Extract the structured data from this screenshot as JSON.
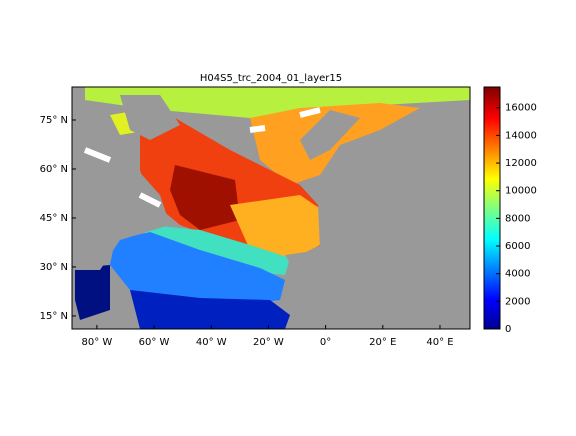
{
  "title": "H04S5_trc_2004_01_layer15",
  "map": {
    "xlim": [
      -88.7,
      50.5
    ],
    "ylim": [
      11,
      85.1
    ],
    "xticks": [
      {
        "value": -80,
        "label": "80° W"
      },
      {
        "value": -60,
        "label": "60° W"
      },
      {
        "value": -40,
        "label": "40° W"
      },
      {
        "value": -20,
        "label": "20° W"
      },
      {
        "value": 0,
        "label": "0°"
      },
      {
        "value": 20,
        "label": "20° E"
      },
      {
        "value": 40,
        "label": "40° E"
      }
    ],
    "yticks": [
      {
        "value": 15,
        "label": "15° N"
      },
      {
        "value": 30,
        "label": "30° N"
      },
      {
        "value": 45,
        "label": "45° N"
      },
      {
        "value": 60,
        "label": "60° N"
      },
      {
        "value": 75,
        "label": "75° N"
      }
    ]
  },
  "colorbar": {
    "lim": [
      0,
      17500
    ],
    "ticks": [
      0,
      2000,
      4000,
      6000,
      8000,
      10000,
      12000,
      14000,
      16000
    ]
  }
}
